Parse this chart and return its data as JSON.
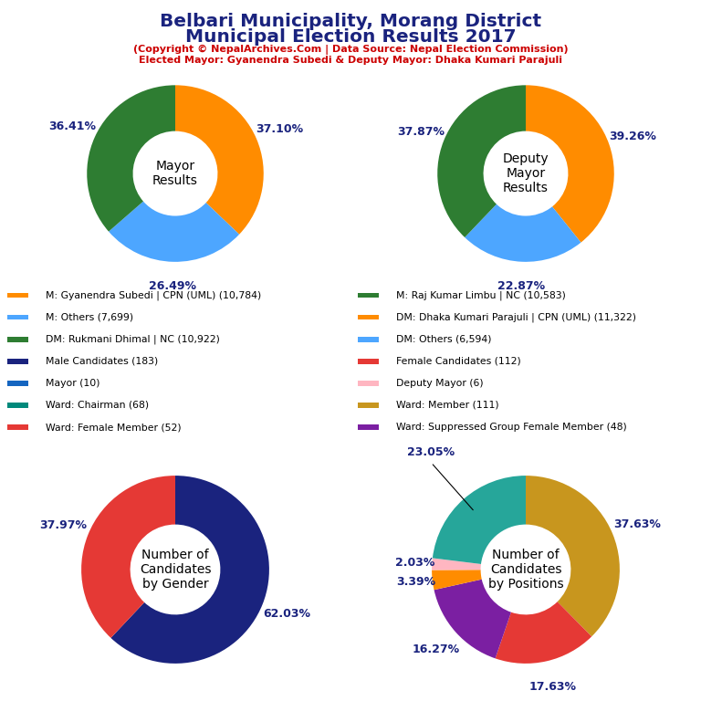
{
  "title_line1": "Belbari Municipality, Morang District",
  "title_line2": "Municipal Election Results 2017",
  "subtitle1": "(Copyright © NepalArchives.Com | Data Source: Nepal Election Commission)",
  "subtitle2": "Elected Mayor: Gyanendra Subedi & Deputy Mayor: Dhaka Kumari Parajuli",
  "mayor_values": [
    37.1,
    26.49,
    36.41
  ],
  "mayor_colors": [
    "#FF8C00",
    "#4DA6FF",
    "#2E7D32"
  ],
  "mayor_label": "Mayor\nResults",
  "mayor_pct_labels": [
    "37.10%",
    "26.49%",
    "36.41%"
  ],
  "deputy_values": [
    39.26,
    22.87,
    37.87
  ],
  "deputy_colors": [
    "#FF8C00",
    "#4DA6FF",
    "#2E7D32"
  ],
  "deputy_label": "Deputy\nMayor\nResults",
  "deputy_pct_labels": [
    "39.26%",
    "22.87%",
    "37.87%"
  ],
  "gender_values": [
    62.03,
    37.97
  ],
  "gender_colors": [
    "#1A237E",
    "#E53935"
  ],
  "gender_label": "Number of\nCandidates\nby Gender",
  "gender_pct_labels": [
    "62.03%",
    "37.97%"
  ],
  "position_values": [
    37.63,
    17.63,
    16.27,
    3.39,
    2.03,
    23.05
  ],
  "position_colors": [
    "#C8961E",
    "#E53935",
    "#7B1FA2",
    "#FF8C00",
    "#FFB6C1",
    "#26A69A"
  ],
  "position_label": "Number of\nCandidates\nby Positions",
  "position_pct_labels": [
    "37.63%",
    "17.63%",
    "16.27%",
    "3.39%",
    "2.03%",
    "23.05%"
  ],
  "legend_items_left": [
    {
      "label": "M: Gyanendra Subedi | CPN (UML) (10,784)",
      "color": "#FF8C00"
    },
    {
      "label": "M: Others (7,699)",
      "color": "#4DA6FF"
    },
    {
      "label": "DM: Rukmani Dhimal | NC (10,922)",
      "color": "#2E7D32"
    },
    {
      "label": "Male Candidates (183)",
      "color": "#1A237E"
    },
    {
      "label": "Mayor (10)",
      "color": "#1565C0"
    },
    {
      "label": "Ward: Chairman (68)",
      "color": "#00897B"
    },
    {
      "label": "Ward: Female Member (52)",
      "color": "#E53935"
    }
  ],
  "legend_items_right": [
    {
      "label": "M: Raj Kumar Limbu | NC (10,583)",
      "color": "#2E7D32"
    },
    {
      "label": "DM: Dhaka Kumari Parajuli | CPN (UML) (11,322)",
      "color": "#FF8C00"
    },
    {
      "label": "DM: Others (6,594)",
      "color": "#4DA6FF"
    },
    {
      "label": "Female Candidates (112)",
      "color": "#E53935"
    },
    {
      "label": "Deputy Mayor (6)",
      "color": "#FFB6C1"
    },
    {
      "label": "Ward: Member (111)",
      "color": "#C8961E"
    },
    {
      "label": "Ward: Suppressed Group Female Member (48)",
      "color": "#7B1FA2"
    }
  ]
}
